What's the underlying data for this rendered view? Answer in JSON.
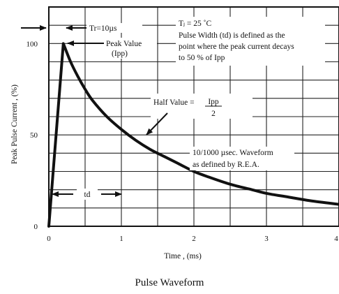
{
  "chart_data": {
    "type": "line",
    "xlabel": "Time , (ms)",
    "ylabel": "Peak Pulse Current , (%)",
    "x_ticks": [
      "0",
      "1",
      "2",
      "3",
      "4"
    ],
    "y_ticks": [
      "0",
      "50",
      "100"
    ],
    "xlim": [
      0,
      4
    ],
    "ylim": [
      0,
      120
    ],
    "grid": true,
    "series": [
      {
        "x": [
          0,
          0.2,
          0.3,
          0.4,
          0.5,
          0.6,
          0.8,
          1.0,
          1.2,
          1.4,
          1.6,
          1.8,
          2.0,
          2.2,
          2.5,
          2.8,
          3.0,
          3.3,
          3.6,
          4.0
        ],
        "y": [
          0,
          100,
          90,
          82,
          75,
          69,
          60,
          53,
          47,
          42,
          38,
          34,
          30,
          27,
          23,
          20,
          18,
          16,
          14,
          12
        ]
      }
    ],
    "annotations": {
      "tr": "Tr=10µs",
      "peak_line1": "Peak Value",
      "peak_line2": "(Ipp)",
      "tj": "Tⱼ = 25 ˚C",
      "pw_line1": "Pulse Width (td) is defined as the",
      "pw_line2": "point where the peak current decays",
      "pw_line3": "to 50 % of Ipp",
      "half_label": "Half Value =",
      "half_num": "Ipp",
      "half_den": "2",
      "wave_line1": "10/1000 µsec. Waveform",
      "wave_line2": "as defined by R.E.A.",
      "td": "td"
    }
  },
  "caption": "Pulse Waveform"
}
